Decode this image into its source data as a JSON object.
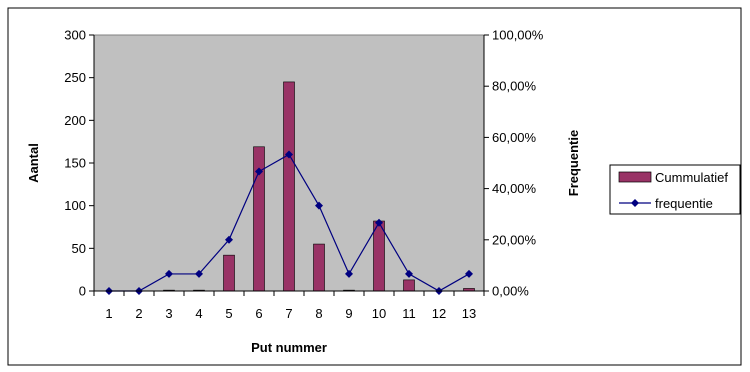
{
  "chart_data": {
    "type": "bar+line",
    "categories": [
      "1",
      "2",
      "3",
      "4",
      "5",
      "6",
      "7",
      "8",
      "9",
      "10",
      "11",
      "12",
      "13"
    ],
    "series": [
      {
        "name": "Cummulatief",
        "type": "bar",
        "axis": "left",
        "color": "#993366",
        "values": [
          0,
          0,
          1,
          1,
          42,
          169,
          245,
          55,
          1,
          82,
          13,
          0,
          3
        ]
      },
      {
        "name": "frequentie",
        "type": "line",
        "axis": "right",
        "color": "#000080",
        "values": [
          0.0,
          0.0,
          6.67,
          6.67,
          20.0,
          46.67,
          53.33,
          33.33,
          6.67,
          26.67,
          6.67,
          0.0,
          6.67
        ]
      }
    ],
    "xlabel": "Put nummer",
    "ylabel": "Aantal",
    "y2label": "Frequentie",
    "ylim": [
      0,
      300
    ],
    "y2lim": [
      0,
      100
    ],
    "yticks": [
      "0",
      "50",
      "100",
      "150",
      "200",
      "250",
      "300"
    ],
    "y2ticks": [
      "0,00%",
      "20,00%",
      "40,00%",
      "60,00%",
      "80,00%",
      "100,00%"
    ],
    "plot_background": "#c0c0c0",
    "grid": false,
    "legend": "right"
  }
}
